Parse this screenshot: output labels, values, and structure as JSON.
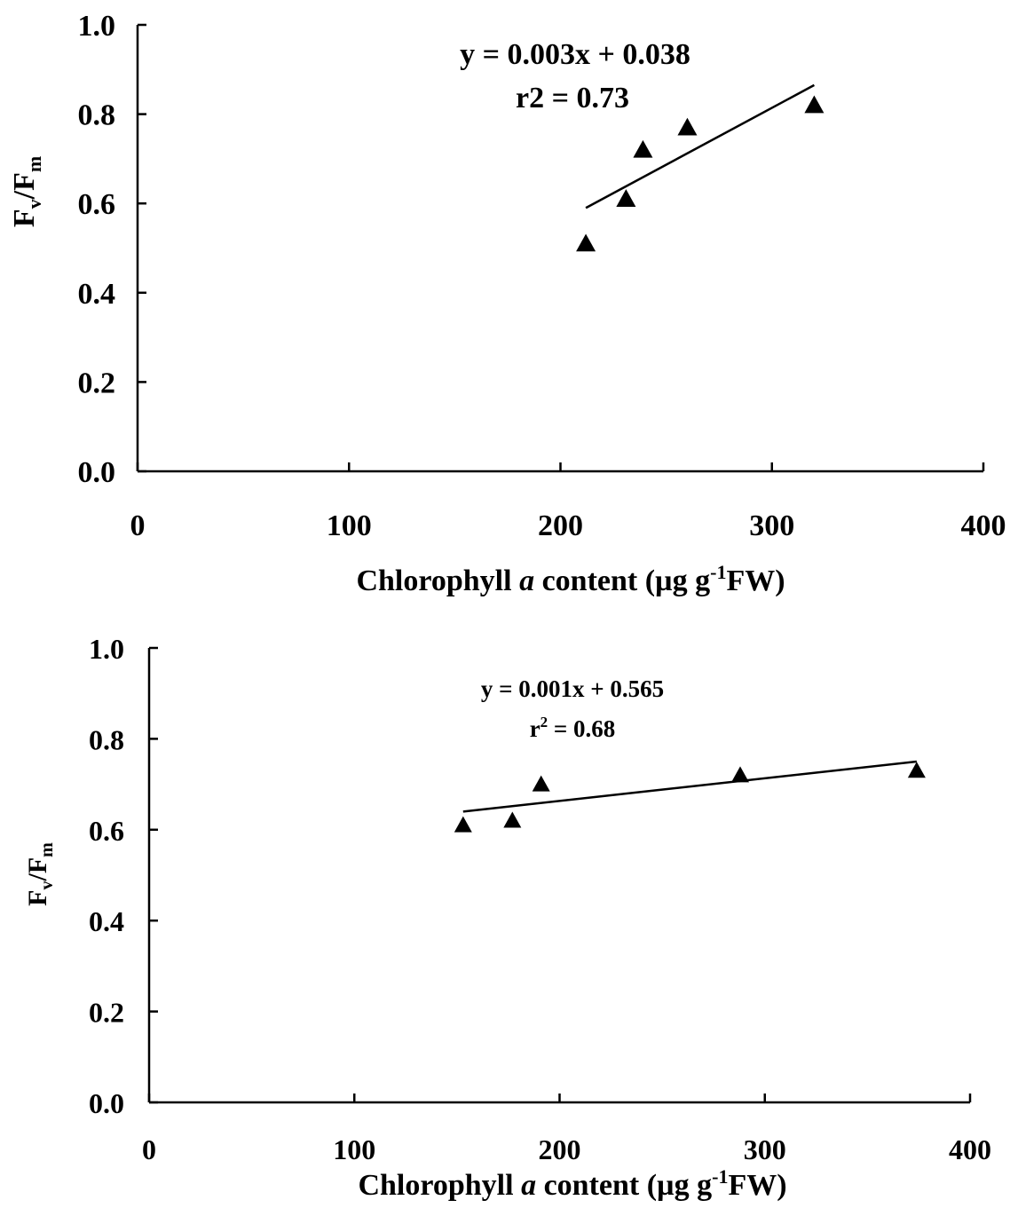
{
  "chart_data": [
    {
      "type": "scatter",
      "title": "",
      "xlabel": {
        "pre": "Chlorophyll ",
        "italic": "a",
        "mid": " content (µg g",
        "sup": "-1",
        "post": "FW)"
      },
      "ylabel": {
        "main1": "F",
        "sub1": "v",
        "slash": "/F",
        "sub2": "m"
      },
      "xlim": [
        0,
        400
      ],
      "ylim": [
        0.0,
        1.0
      ],
      "x_ticks": [
        0,
        100,
        200,
        300,
        400
      ],
      "x_tick_labels": [
        "0",
        "100",
        "200",
        "300",
        "400"
      ],
      "y_ticks": [
        0.0,
        0.2,
        0.4,
        0.6,
        0.8,
        1.0
      ],
      "y_tick_labels": [
        "0.0",
        "0.2",
        "0.4",
        "0.6",
        "0.8",
        "1.0"
      ],
      "marker": "triangle",
      "grid": false,
      "points": [
        {
          "x": 212,
          "y": 0.51
        },
        {
          "x": 231,
          "y": 0.61
        },
        {
          "x": 239,
          "y": 0.72
        },
        {
          "x": 260,
          "y": 0.77
        },
        {
          "x": 320,
          "y": 0.82
        }
      ],
      "trendline": {
        "x": [
          212,
          320
        ],
        "y": [
          0.59,
          0.865
        ]
      },
      "annotations": {
        "equation": "y = 0.003x + 0.038",
        "r2": "r2 = 0.73"
      }
    },
    {
      "type": "scatter",
      "title": "",
      "xlabel": {
        "pre": "Chlorophyll ",
        "italic": "a",
        "mid": " content (µg g",
        "sup": "-1",
        "post": "FW)"
      },
      "ylabel": {
        "main1": "F",
        "sub1": "v",
        "slash": "/F",
        "sub2": "m"
      },
      "xlim": [
        0,
        400
      ],
      "ylim": [
        0.0,
        1.0
      ],
      "x_ticks": [
        0,
        100,
        200,
        300,
        400
      ],
      "x_tick_labels": [
        "0",
        "100",
        "200",
        "300",
        "400"
      ],
      "y_ticks": [
        0.0,
        0.2,
        0.4,
        0.6,
        0.8,
        1.0
      ],
      "y_tick_labels": [
        "0.0",
        "0.2",
        "0.4",
        "0.6",
        "0.8",
        "1.0"
      ],
      "marker": "triangle",
      "grid": false,
      "points": [
        {
          "x": 153,
          "y": 0.61
        },
        {
          "x": 177,
          "y": 0.62
        },
        {
          "x": 191,
          "y": 0.7
        },
        {
          "x": 288,
          "y": 0.72
        },
        {
          "x": 374,
          "y": 0.73
        }
      ],
      "trendline": {
        "x": [
          153,
          374
        ],
        "y": [
          0.64,
          0.75
        ]
      },
      "annotations": {
        "equation": "y = 0.001x + 0.565",
        "r2_pre": "r",
        "r2_sup": "2",
        "r2_post": " = 0.68"
      }
    }
  ]
}
